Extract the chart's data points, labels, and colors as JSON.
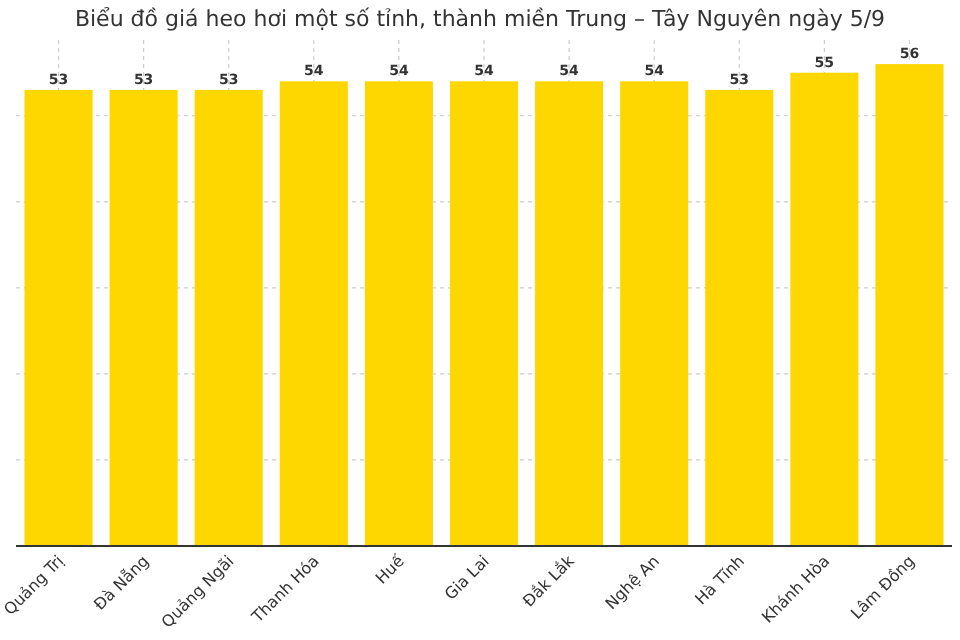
{
  "chart_data": {
    "type": "bar",
    "title": "Biểu đồ giá heo hơi một số tỉnh, thành miền Trung – Tây Nguyên ngày 5/9",
    "categories": [
      "Quảng Trị",
      "Đà Nẵng",
      "Quảng Ngãi",
      "Thanh Hóa",
      "Huế",
      "Gia Lai",
      "Đắk Lắk",
      "Nghệ An",
      "Hà Tĩnh",
      "Khánh Hòa",
      "Lâm Đồng"
    ],
    "values": [
      53,
      53,
      53,
      54,
      54,
      54,
      54,
      54,
      53,
      55,
      56
    ],
    "color": "#ffd700",
    "ylim": [
      0,
      58.8
    ],
    "yticks": [
      {
        "value": 0,
        "label": null
      },
      {
        "value": 10,
        "label": null
      },
      {
        "value": 20,
        "label": null
      },
      {
        "value": 30,
        "label": null
      },
      {
        "value": 40,
        "label": null
      },
      {
        "value": 50,
        "label": null
      }
    ],
    "tick_labels": "x",
    "grid": true,
    "data_labels": true
  }
}
